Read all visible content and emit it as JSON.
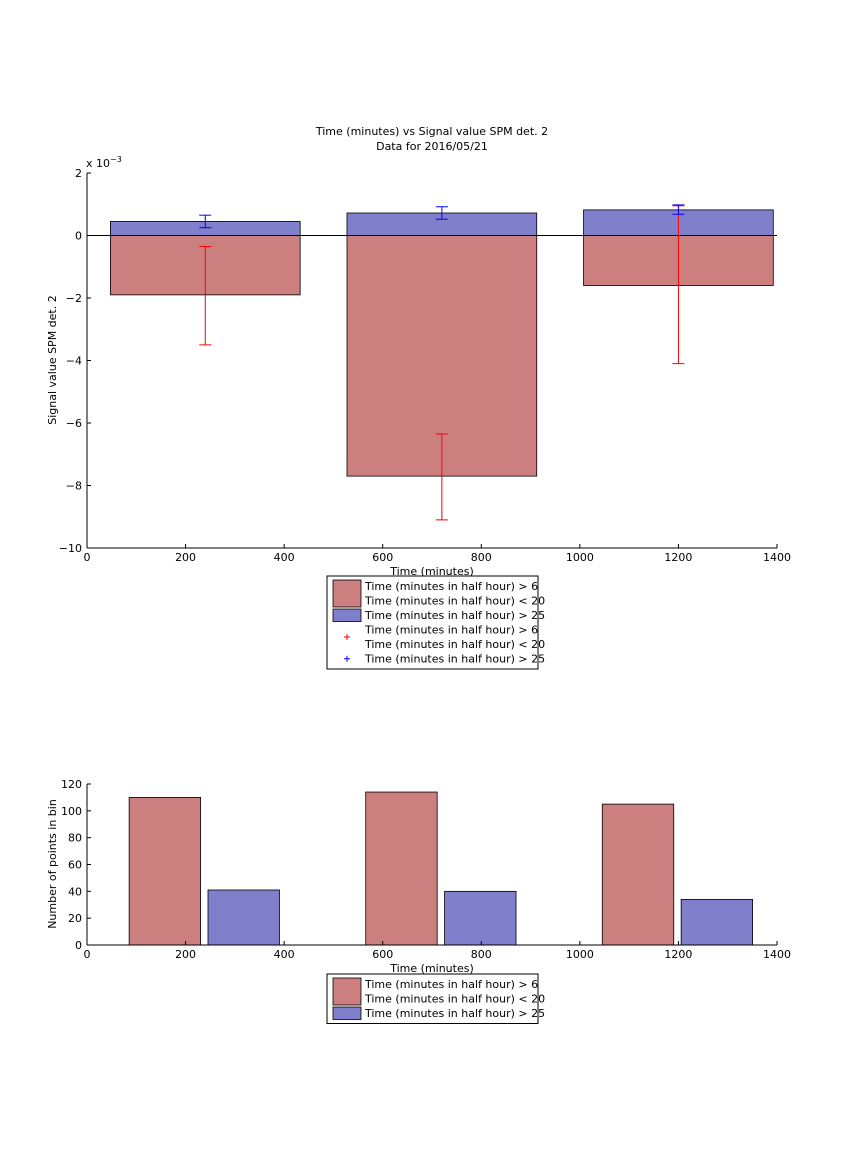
{
  "colors": {
    "red_bar": "#cc7f7f",
    "blue_bar": "#7f7fcc",
    "red_err": "#ff0000",
    "blue_err": "#0000ff"
  },
  "chart_data": [
    {
      "type": "bar",
      "title": "Time (minutes) vs Signal value SPM det. 2",
      "subtitle": "Data for 2016/05/21",
      "xlabel": "Time (minutes)",
      "ylabel": "Signal value SPM det. 2",
      "exponent_label": "x 10",
      "exponent_power": "−3",
      "xlim": [
        0,
        1400
      ],
      "ylim": [
        -10,
        2
      ],
      "xticks": [
        "0",
        "200",
        "400",
        "600",
        "800",
        "1000",
        "1200",
        "1400"
      ],
      "yticks": [
        "−10",
        "−8",
        "−6",
        "−4",
        "−2",
        "0",
        "2"
      ],
      "centers": [
        240,
        720,
        1200
      ],
      "bar_width": 385,
      "series": [
        {
          "name": "Time (minutes in half hour) > 6\nTime (minutes in half hour) < 20",
          "values": [
            -1.9,
            -7.7,
            -1.6
          ],
          "err_low": [
            -3.5,
            -9.1,
            -4.1
          ],
          "err_high": [
            -0.35,
            -6.35,
            0.95
          ]
        },
        {
          "name": "Time (minutes in half hour) > 25",
          "values": [
            0.45,
            0.72,
            0.82
          ],
          "err_low": [
            0.25,
            0.52,
            0.68
          ],
          "err_high": [
            0.65,
            0.92,
            0.98
          ]
        }
      ],
      "legend": [
        {
          "kind": "patch",
          "color": "red_bar",
          "lines": [
            "Time (minutes in half hour) > 6",
            "Time (minutes in half hour) < 20"
          ]
        },
        {
          "kind": "patch",
          "color": "blue_bar",
          "lines": [
            "Time (minutes in half hour) > 25"
          ]
        },
        {
          "kind": "marker",
          "color": "red_err",
          "lines": [
            "Time (minutes in half hour) > 6",
            "Time (minutes in half hour) < 20"
          ]
        },
        {
          "kind": "marker",
          "color": "blue_err",
          "lines": [
            "Time (minutes in half hour) > 25"
          ]
        }
      ]
    },
    {
      "type": "bar",
      "xlabel": "Time (minutes)",
      "ylabel": "Number of points in bin",
      "xlim": [
        0,
        1400
      ],
      "ylim": [
        0,
        120
      ],
      "xticks": [
        "0",
        "200",
        "400",
        "600",
        "800",
        "1000",
        "1200",
        "1400"
      ],
      "yticks": [
        "0",
        "20",
        "40",
        "60",
        "80",
        "100",
        "120"
      ],
      "bar_width": 145,
      "series": [
        {
          "name": "Time (minutes in half hour) > 6\nTime (minutes in half hour) < 20",
          "centers": [
            158,
            638,
            1118
          ],
          "values": [
            110,
            114,
            105
          ]
        },
        {
          "name": "Time (minutes in half hour) > 25",
          "centers": [
            318,
            798,
            1278
          ],
          "values": [
            41,
            40,
            34
          ]
        }
      ],
      "legend": [
        {
          "kind": "patch",
          "color": "red_bar",
          "lines": [
            "Time (minutes in half hour) > 6",
            "Time (minutes in half hour) < 20"
          ]
        },
        {
          "kind": "patch",
          "color": "blue_bar",
          "lines": [
            "Time (minutes in half hour) > 25"
          ]
        }
      ]
    }
  ]
}
